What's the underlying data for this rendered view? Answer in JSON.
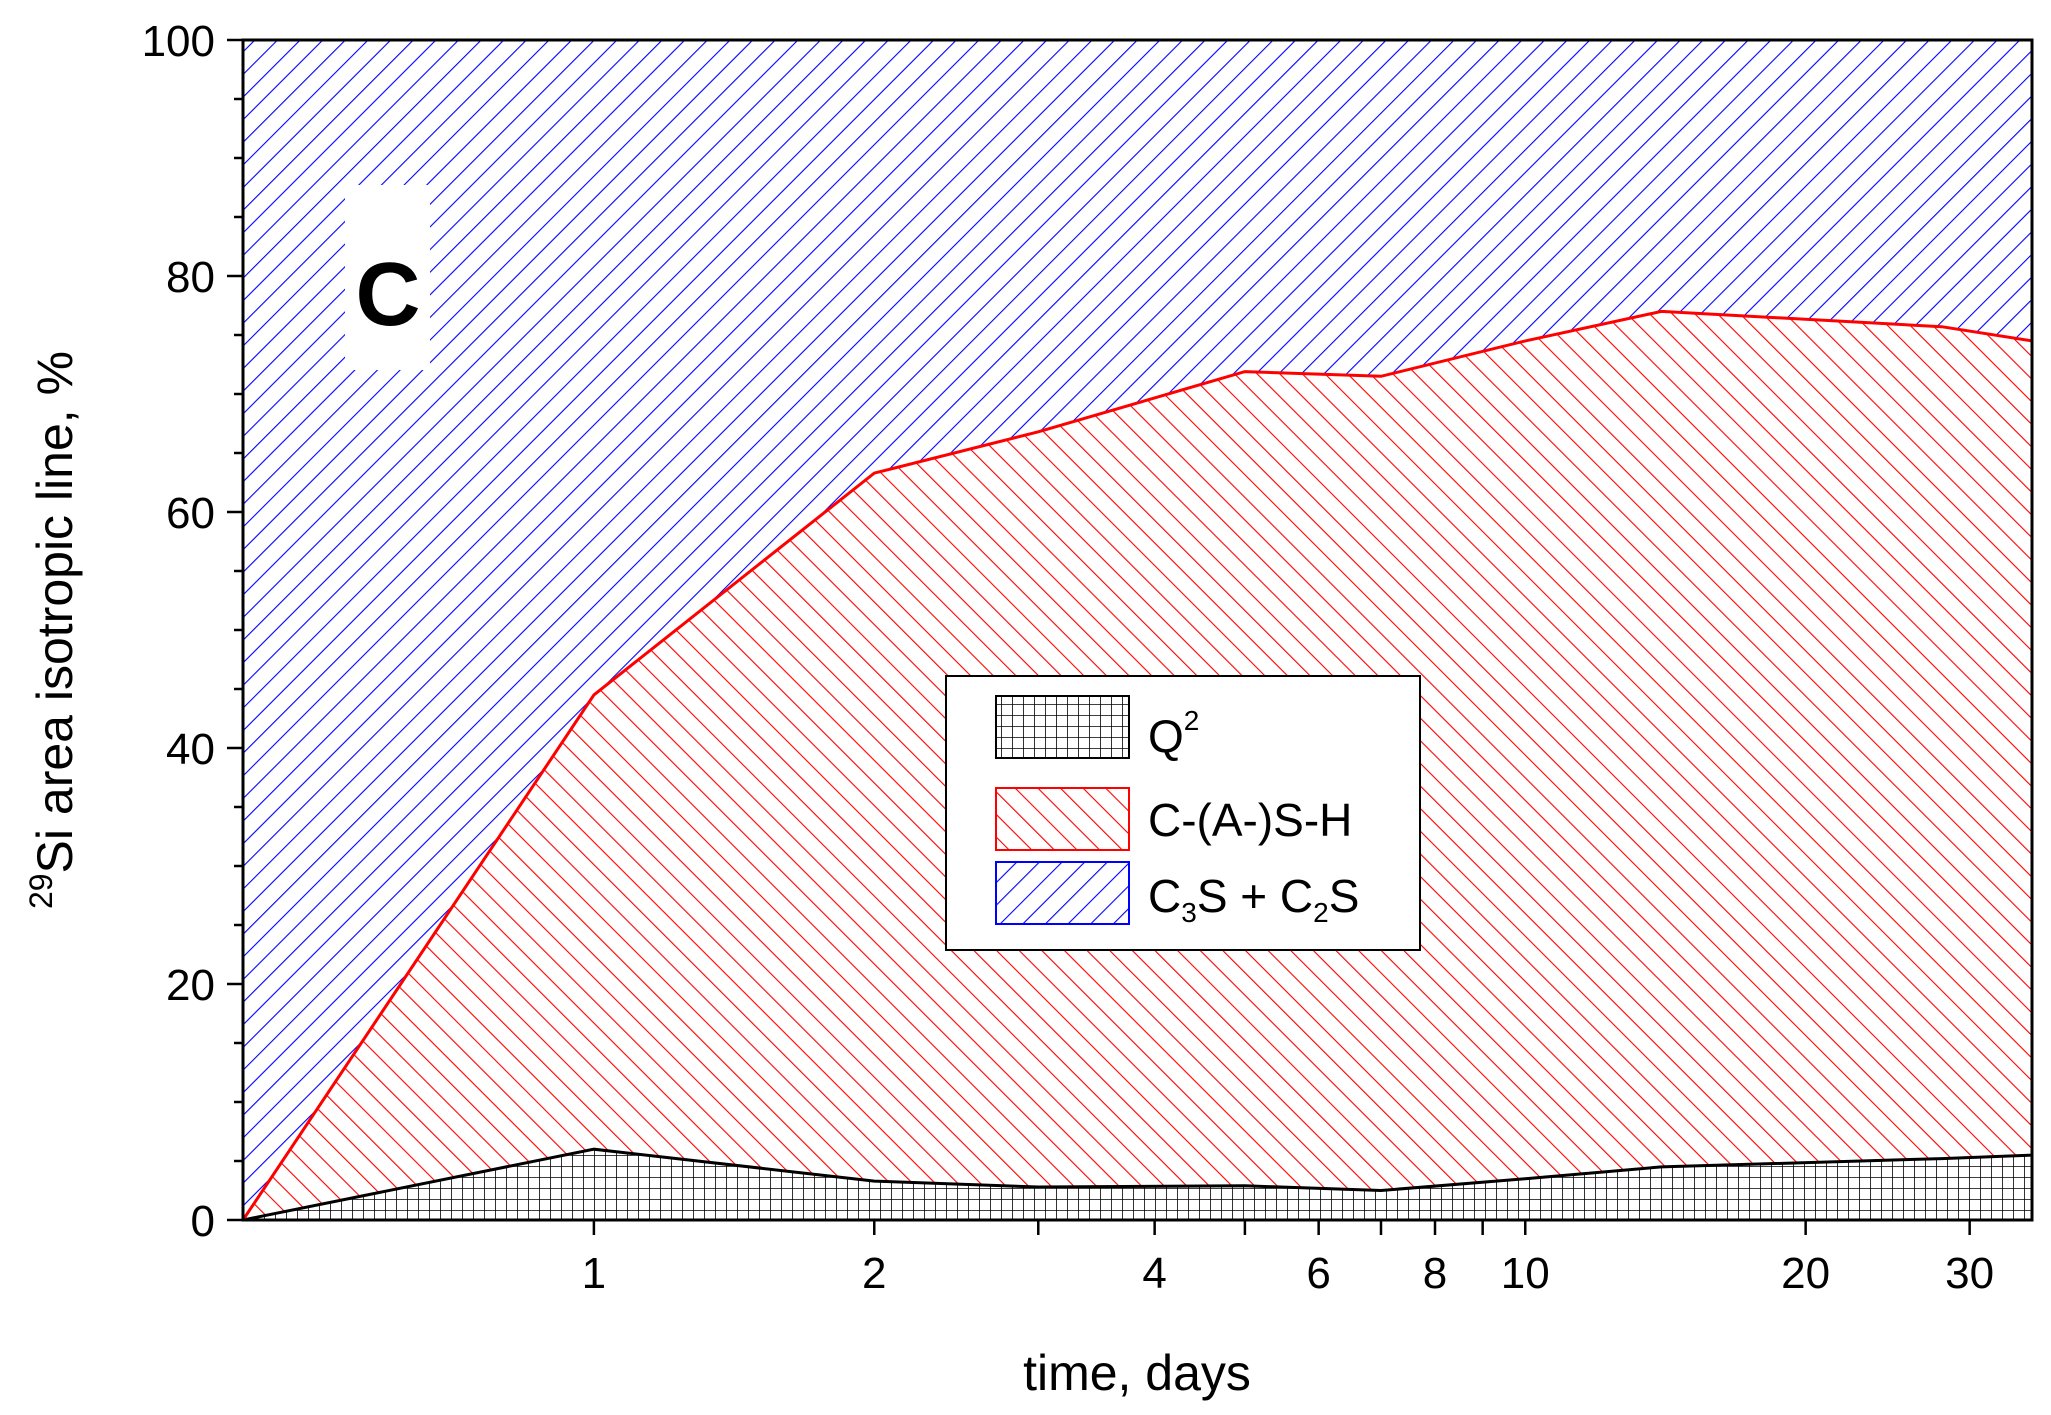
{
  "chart_data": {
    "type": "area",
    "stacked": true,
    "panel_label": "C",
    "xlabel": "time, days",
    "ylabel": {
      "superscript": "29",
      "text": "Si area isotropic line, %"
    },
    "x_scale": "log",
    "ylim": [
      0,
      100
    ],
    "y_ticks": [
      0,
      20,
      40,
      60,
      80,
      100
    ],
    "y_tick_labels": [
      "0",
      "20",
      "40",
      "60",
      "80",
      "100"
    ],
    "x_ticks": [
      1,
      2,
      3,
      4,
      5,
      6,
      7,
      8,
      9,
      10,
      20,
      30
    ],
    "x_tick_labels": [
      {
        "value": 1,
        "label": "1"
      },
      {
        "value": 2,
        "label": "2"
      },
      {
        "value": 4,
        "label": "4"
      },
      {
        "value": 6,
        "label": "6"
      },
      {
        "value": 8,
        "label": "8"
      },
      {
        "value": 10,
        "label": "10"
      },
      {
        "value": 20,
        "label": "20"
      },
      {
        "value": 30,
        "label": "30"
      }
    ],
    "x": [
      0.42,
      1,
      2,
      3,
      5,
      7,
      10,
      14,
      28,
      35
    ],
    "series": [
      {
        "key": "q2",
        "name": "Q",
        "superscript": "2",
        "color": "#000000",
        "pattern": "grid",
        "values": [
          0,
          6,
          3.3,
          2.8,
          2.9,
          2.5,
          3.5,
          4.5,
          5.2,
          5.5
        ]
      },
      {
        "key": "cash",
        "name": "C-(A-)S-H",
        "color": "#ff0000",
        "pattern": "diagonal-up",
        "values": [
          0,
          38.5,
          60,
          64,
          69,
          69,
          71,
          72.5,
          70.5,
          69
        ]
      },
      {
        "key": "c3s",
        "name": "C3S + C2S",
        "color": "#0000ff",
        "pattern": "diagonal-down",
        "values": [
          100,
          55.5,
          36.7,
          33.2,
          28.1,
          28.5,
          25.5,
          23,
          24.3,
          25.5
        ]
      }
    ],
    "legend": {
      "placement": "center-right",
      "entries": [
        {
          "key": "q2",
          "label": "Q",
          "sup": "2"
        },
        {
          "key": "cash",
          "label": "C-(A-)S-H"
        },
        {
          "key": "c3s",
          "label": "C3S + C2S",
          "rich": [
            "C",
            "3",
            "S + C",
            "2",
            "S"
          ]
        }
      ]
    },
    "grid": false
  }
}
